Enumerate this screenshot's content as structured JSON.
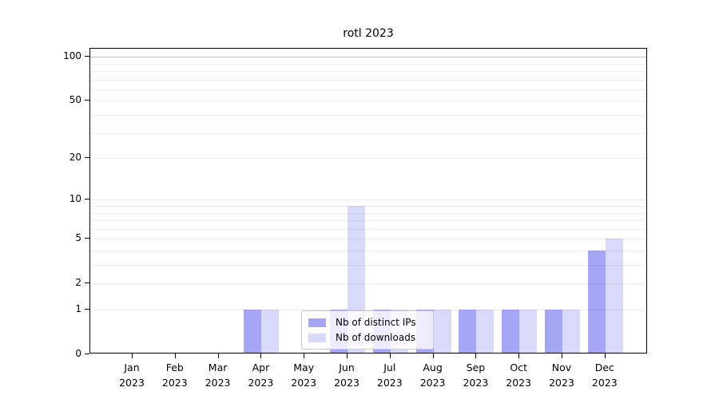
{
  "chart_data": {
    "type": "bar",
    "title": "rotl 2023",
    "x": {
      "months": [
        "Jan",
        "Feb",
        "Mar",
        "Apr",
        "May",
        "Jun",
        "Jul",
        "Aug",
        "Sep",
        "Oct",
        "Nov",
        "Dec"
      ],
      "year": "2023"
    },
    "yticks": [
      0,
      1,
      2,
      5,
      10,
      20,
      50,
      100
    ],
    "gridlines": [
      1,
      2,
      3,
      4,
      5,
      6,
      7,
      8,
      9,
      10,
      20,
      30,
      40,
      50,
      60,
      70,
      80,
      90,
      100
    ],
    "scale": "log10(1+x)",
    "ylim": [
      0,
      113
    ],
    "grid": "horizontal",
    "legend_position": "lower center",
    "series": [
      {
        "name": "Nb of distinct IPs",
        "color": "#a6a6f7",
        "values": [
          0,
          0,
          0,
          1,
          0,
          1,
          1,
          1,
          1,
          1,
          1,
          4
        ]
      },
      {
        "name": "Nb of downloads",
        "color": "#d9d9fa",
        "values": [
          0,
          0,
          0,
          1,
          0,
          9,
          1,
          1,
          1,
          1,
          1,
          5
        ]
      }
    ],
    "colors": {
      "grid_minor": "rgba(0,0,0,0.07)",
      "grid_major_top": "rgba(0,0,0,0.26)",
      "axis": "#000000"
    }
  }
}
